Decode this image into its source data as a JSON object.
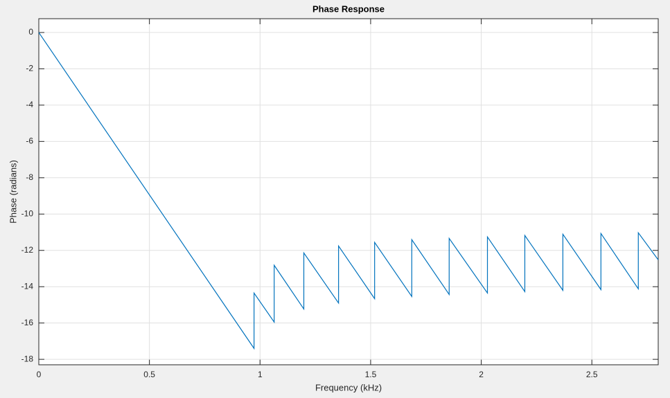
{
  "chart_data": {
    "type": "line",
    "title": "Phase Response",
    "x_label": "Frequency (kHz)",
    "y_label": "Phase (radians)",
    "series": [
      {
        "name": "Phase",
        "color": "#0072bd",
        "x": [
          0,
          0.973,
          0.973,
          1.064,
          1.064,
          1.198,
          1.198,
          1.355,
          1.355,
          1.518,
          1.518,
          1.686,
          1.686,
          1.855,
          1.855,
          2.028,
          2.028,
          2.197,
          2.197,
          2.369,
          2.369,
          2.541,
          2.541,
          2.71,
          2.71,
          2.8
        ],
        "values": [
          0,
          -17.4,
          -14.35,
          -15.95,
          -12.82,
          -15.23,
          -12.14,
          -14.9,
          -11.76,
          -14.66,
          -11.56,
          -14.54,
          -11.41,
          -14.43,
          -11.34,
          -14.35,
          -11.26,
          -14.27,
          -11.18,
          -14.2,
          -11.11,
          -14.16,
          -11.07,
          -14.12,
          -11.03,
          -12.52
        ]
      }
    ],
    "xlim": [
      0,
      2.8
    ],
    "xticks": [
      0,
      0.5,
      1,
      1.5,
      2,
      2.5
    ],
    "ylim": [
      -18.3,
      0.76
    ],
    "yticks": [
      0,
      -2,
      -4,
      -6,
      -8,
      -10,
      -12,
      -14,
      -16,
      -18
    ],
    "grid": true
  }
}
